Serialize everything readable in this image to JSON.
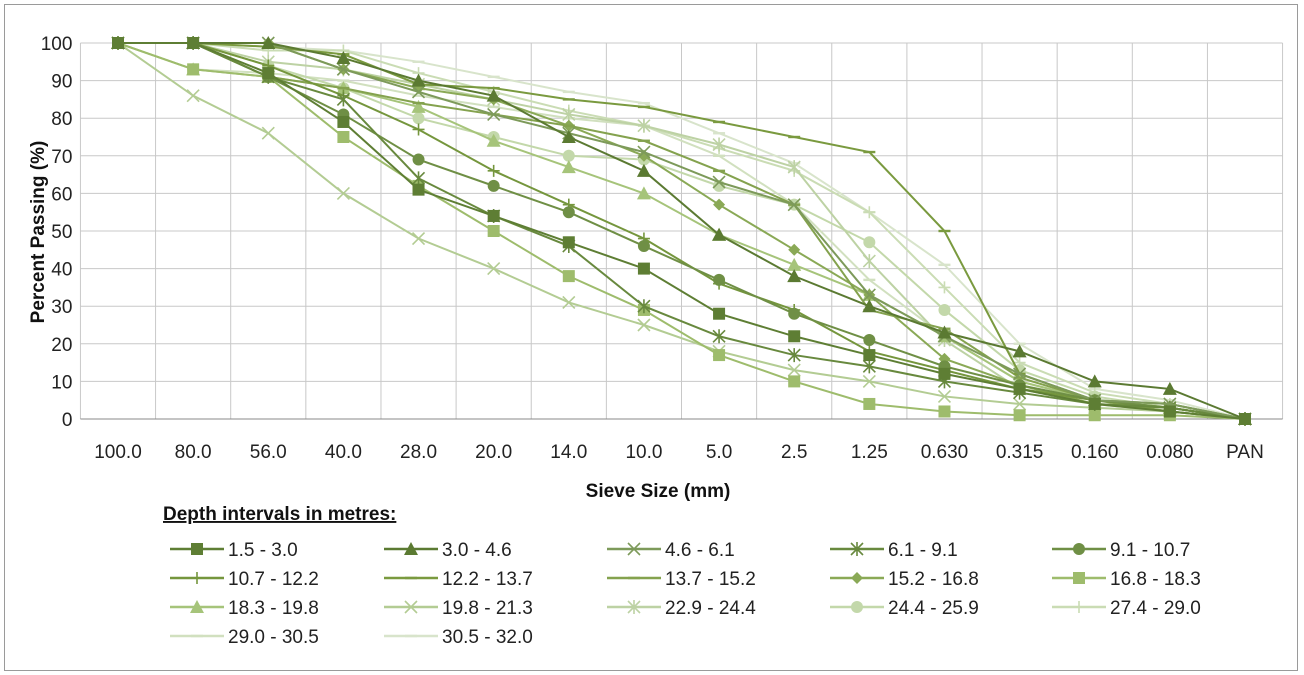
{
  "chart_data": {
    "type": "line",
    "xlabel": "Sieve Size (mm)",
    "ylabel": "Percent Passing (%)",
    "ylim": [
      0,
      100
    ],
    "yticks": [
      0,
      10,
      20,
      30,
      40,
      50,
      60,
      70,
      80,
      90,
      100
    ],
    "categories": [
      "100.0",
      "80.0",
      "56.0",
      "40.0",
      "28.0",
      "20.0",
      "14.0",
      "10.0",
      "5.0",
      "2.5",
      "1.25",
      "0.630",
      "0.315",
      "0.160",
      "0.080",
      "PAN"
    ],
    "grid": true,
    "legend_title": "Depth intervals in metres:",
    "legend_position": "bottom",
    "series": [
      {
        "name": "1.5 - 3.0",
        "marker": "square",
        "color": "#5e7e34",
        "values": [
          100,
          100,
          92,
          79,
          61,
          54,
          47,
          40,
          28,
          22,
          17,
          12,
          8,
          4,
          2,
          0
        ]
      },
      {
        "name": "3.0 - 4.6",
        "marker": "triangle",
        "color": "#5b7a32",
        "values": [
          100,
          100,
          100,
          96,
          90,
          86,
          75,
          66,
          49,
          38,
          30,
          23,
          18,
          10,
          8,
          0
        ]
      },
      {
        "name": "4.6 - 6.1",
        "marker": "x",
        "color": "#7d9a5a",
        "values": [
          100,
          100,
          100,
          93,
          87,
          81,
          76,
          71,
          63,
          57,
          33,
          22,
          12,
          5,
          4,
          0
        ]
      },
      {
        "name": "6.1 - 9.1",
        "marker": "star",
        "color": "#68893e",
        "values": [
          100,
          100,
          91,
          85,
          64,
          54,
          46,
          30,
          22,
          17,
          14,
          10,
          7,
          4,
          3,
          0
        ]
      },
      {
        "name": "9.1 - 10.7",
        "marker": "circle",
        "color": "#6f8f45",
        "values": [
          100,
          100,
          91,
          81,
          69,
          62,
          55,
          46,
          37,
          28,
          21,
          14,
          9,
          5,
          3,
          0
        ]
      },
      {
        "name": "10.7 - 12.2",
        "marker": "plus",
        "color": "#75963d",
        "values": [
          100,
          100,
          94,
          86,
          77,
          66,
          57,
          48,
          36,
          29,
          18,
          13,
          8,
          5,
          3,
          0
        ]
      },
      {
        "name": "12.2 - 13.7",
        "marker": "dash",
        "color": "#7a9a3f",
        "values": [
          100,
          100,
          99,
          97,
          89,
          88,
          85,
          83,
          79,
          75,
          71,
          50,
          12,
          5,
          4,
          0
        ]
      },
      {
        "name": "13.7 - 15.2",
        "marker": "dash",
        "color": "#84a24e",
        "values": [
          100,
          100,
          91,
          88,
          84,
          81,
          78,
          74,
          66,
          57,
          29,
          24,
          11,
          5,
          2,
          0
        ]
      },
      {
        "name": "15.2 - 16.8",
        "marker": "diamond",
        "color": "#8aa956",
        "values": [
          100,
          100,
          100,
          93,
          88,
          85,
          78,
          70,
          57,
          45,
          33,
          16,
          9,
          4,
          3,
          0
        ]
      },
      {
        "name": "16.8 - 18.3",
        "marker": "square",
        "color": "#9ebc6c",
        "values": [
          100,
          93,
          91,
          75,
          62,
          50,
          38,
          29,
          17,
          10,
          4,
          2,
          1,
          1,
          1,
          0
        ]
      },
      {
        "name": "18.3 - 19.8",
        "marker": "triangle",
        "color": "#a6c47a",
        "values": [
          100,
          93,
          91,
          88,
          83,
          74,
          67,
          60,
          49,
          41,
          33,
          22,
          10,
          5,
          3,
          0
        ]
      },
      {
        "name": "19.8 - 21.3",
        "marker": "x",
        "color": "#b3cc93",
        "values": [
          100,
          86,
          76,
          60,
          48,
          40,
          31,
          25,
          18,
          13,
          10,
          6,
          4,
          3,
          2,
          0
        ]
      },
      {
        "name": "22.9 - 24.4",
        "marker": "star",
        "color": "#bdd2a4",
        "values": [
          100,
          100,
          95,
          93,
          89,
          85,
          81,
          78,
          73,
          67,
          42,
          21,
          8,
          4,
          2,
          0
        ]
      },
      {
        "name": "24.4 - 25.9",
        "marker": "circle",
        "color": "#c3d8aa",
        "values": [
          100,
          100,
          94,
          88,
          80,
          75,
          70,
          69,
          62,
          57,
          47,
          29,
          13,
          6,
          3,
          0
        ]
      },
      {
        "name": "27.4 - 29.0",
        "marker": "plus",
        "color": "#cadcb4",
        "values": [
          100,
          100,
          98,
          98,
          92,
          87,
          82,
          78,
          72,
          66,
          55,
          35,
          15,
          7,
          4,
          0
        ]
      },
      {
        "name": "29.0 - 30.5",
        "marker": "dash",
        "color": "#d1e0bf",
        "values": [
          100,
          93,
          92,
          90,
          86,
          83,
          80,
          78,
          70,
          57,
          37,
          22,
          10,
          5,
          3,
          0
        ]
      },
      {
        "name": "30.5 - 32.0",
        "marker": "dash",
        "color": "#d8e4cb",
        "values": [
          100,
          100,
          99,
          98,
          95,
          91,
          87,
          84,
          76,
          68,
          55,
          41,
          20,
          8,
          5,
          0
        ]
      }
    ]
  }
}
